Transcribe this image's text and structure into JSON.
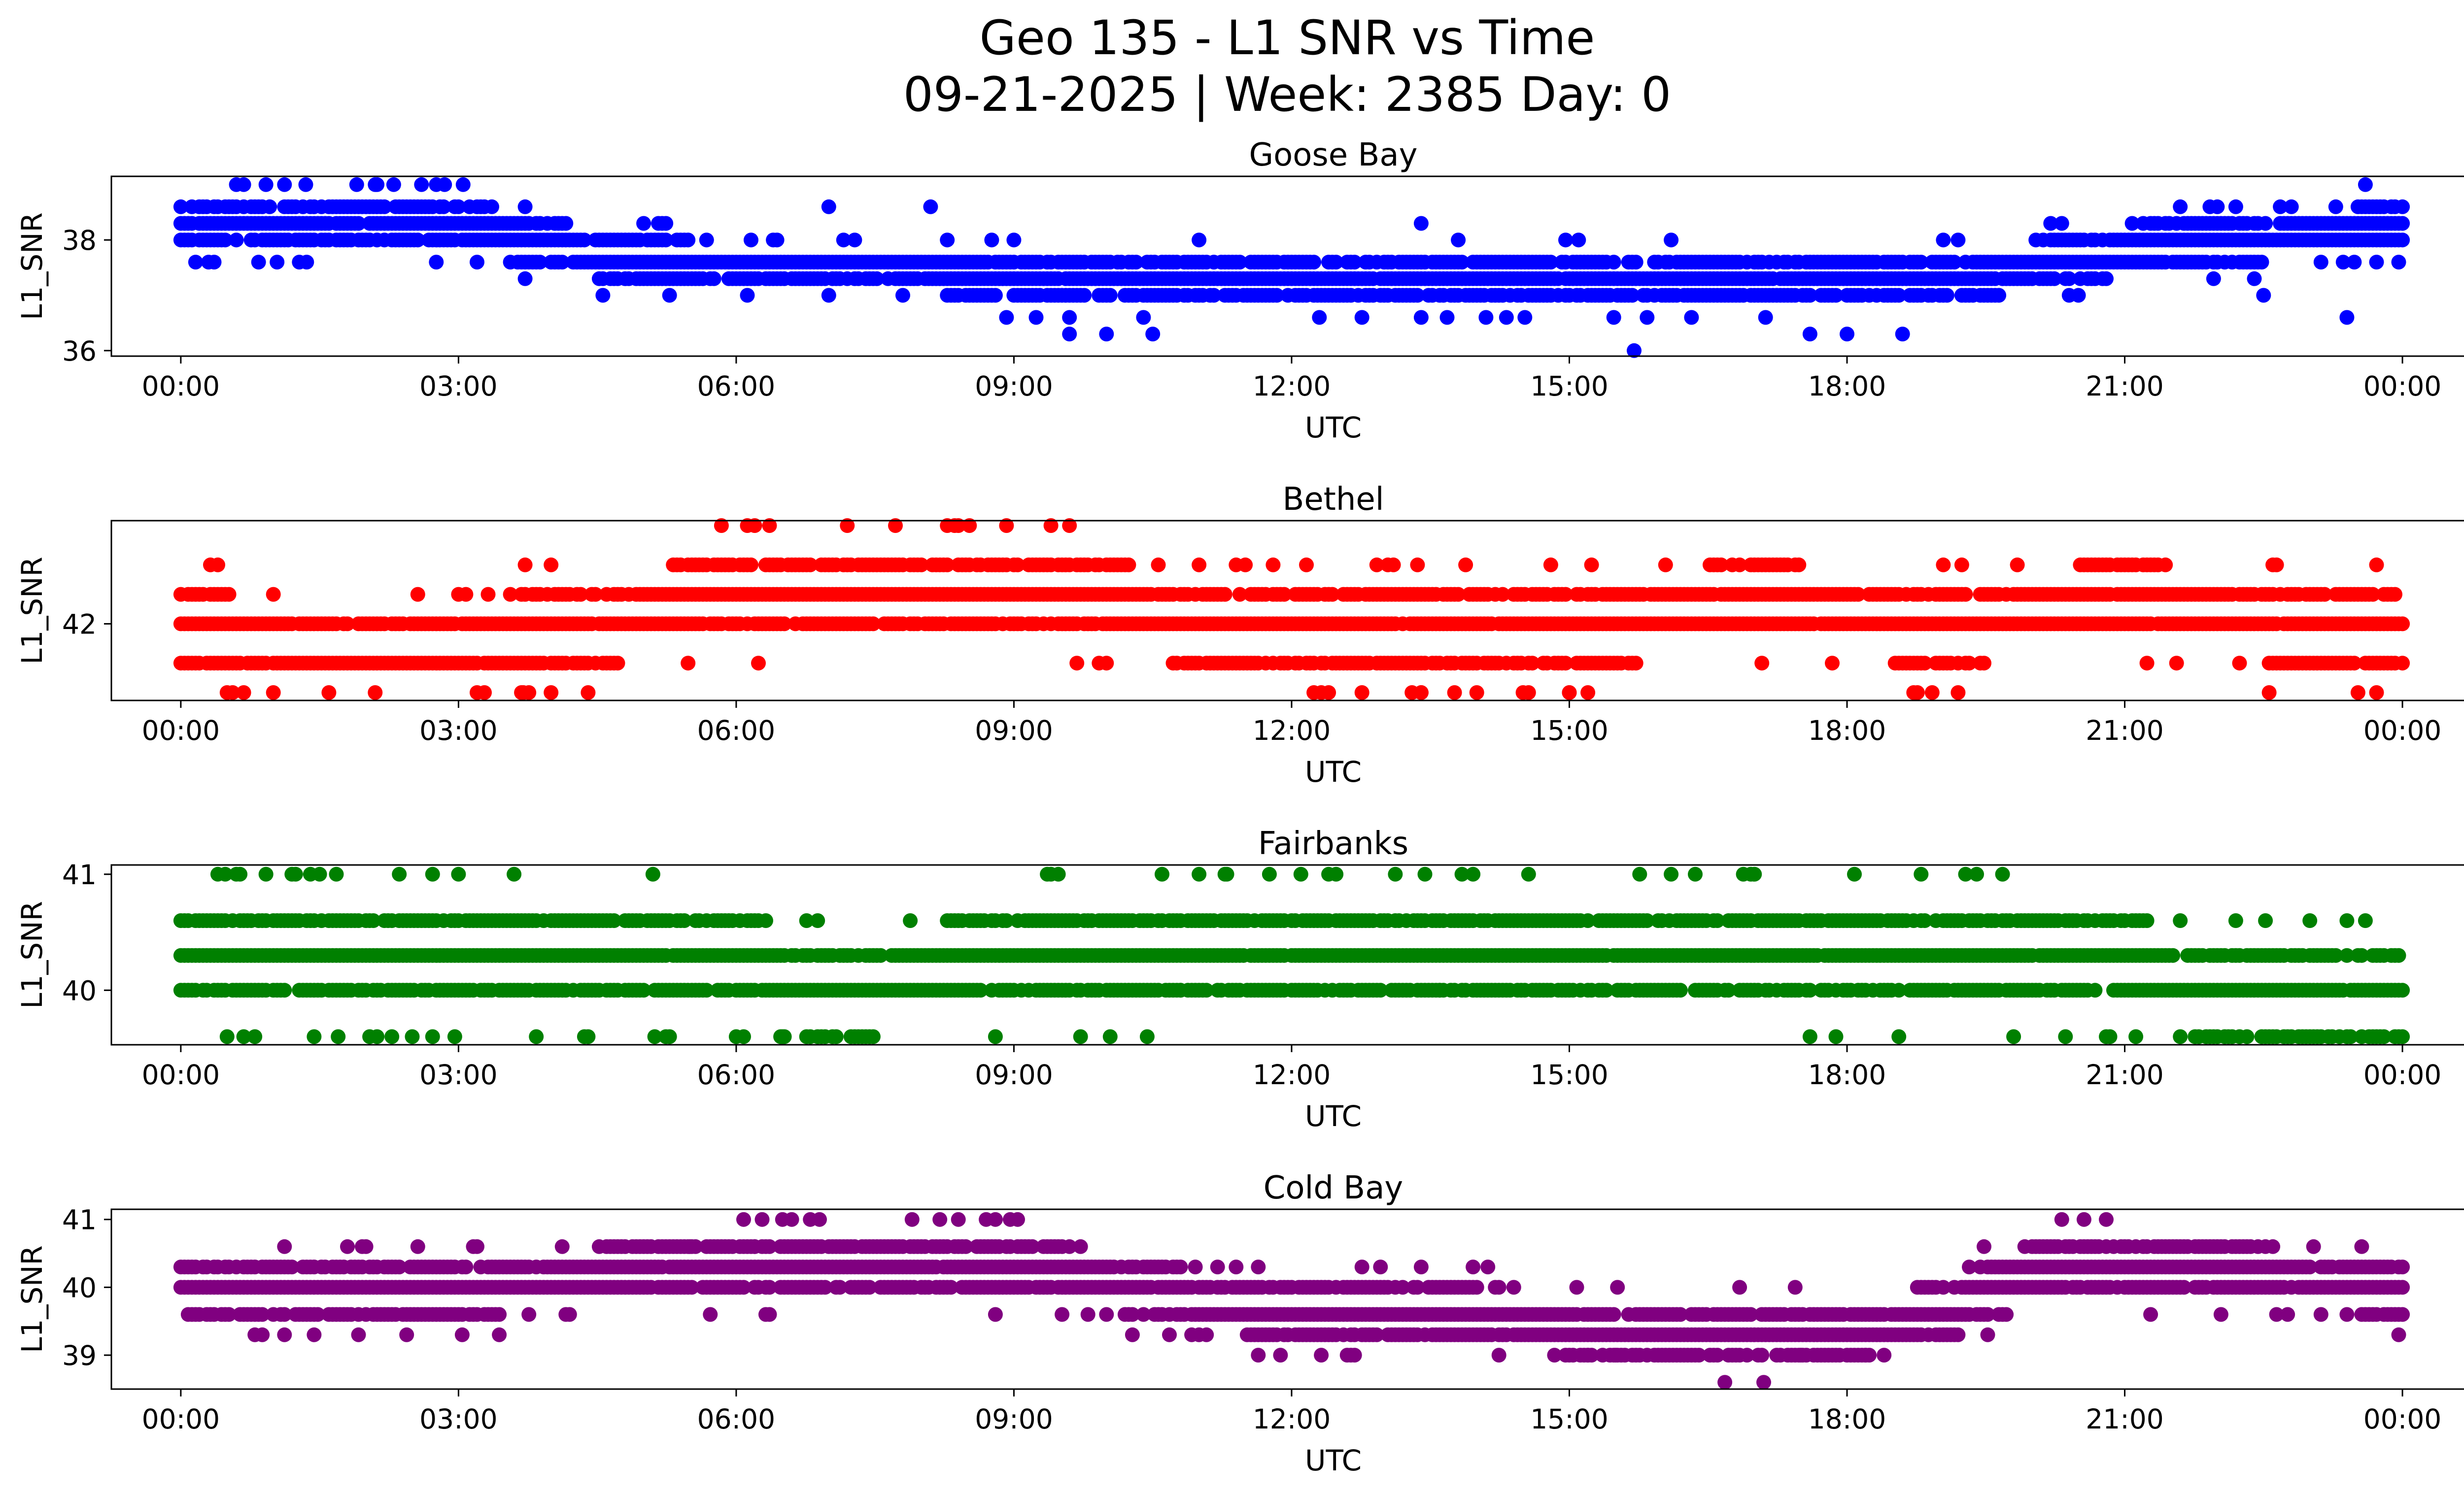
{
  "figure": {
    "title_line1": "Geo 135 - L1 SNR vs Time",
    "title_line2": "09-21-2025 | Week: 2385 Day: 0"
  },
  "chart_data": [
    {
      "type": "scatter",
      "title": "Goose Bay",
      "xlabel": "UTC",
      "ylabel": "L1_SNR",
      "color": "#0000ff",
      "xlim_hours": [
        -0.75,
        25.65
      ],
      "ylim": [
        35.9,
        39.15
      ],
      "x_ticks": [
        "00:00",
        "03:00",
        "06:00",
        "09:00",
        "12:00",
        "15:00",
        "18:00",
        "21:00",
        "00:00"
      ],
      "y_ticks": [
        36,
        38
      ],
      "levels": [
        36.0,
        36.3,
        36.6,
        37.0,
        37.3,
        37.6,
        38.0,
        38.3,
        38.6,
        39.0
      ],
      "hourly_level": [
        38.2,
        38.3,
        38.4,
        38.3,
        37.9,
        37.6,
        37.5,
        37.5,
        37.5,
        37.3,
        37.2,
        37.2,
        37.2,
        37.2,
        37.3,
        37.3,
        37.2,
        37.2,
        37.2,
        37.3,
        37.5,
        37.8,
        38.0,
        38.1,
        38.2
      ],
      "sparse_points": [
        [
          0.3,
          37.6
        ],
        [
          0.6,
          39.0
        ],
        [
          1.35,
          39.0
        ],
        [
          1.9,
          39.0
        ],
        [
          2.1,
          39.0
        ],
        [
          2.3,
          39.0
        ],
        [
          2.6,
          39.0
        ],
        [
          2.85,
          39.0
        ],
        [
          3.05,
          39.0
        ],
        [
          7.0,
          38.6
        ],
        [
          8.1,
          38.6
        ],
        [
          9.6,
          36.3
        ],
        [
          10.0,
          36.3
        ],
        [
          10.5,
          36.3
        ],
        [
          11.0,
          38.0
        ],
        [
          12.3,
          36.6
        ],
        [
          13.4,
          38.3
        ],
        [
          14.1,
          36.6
        ],
        [
          15.1,
          38.0
        ],
        [
          15.7,
          36.0
        ],
        [
          16.1,
          38.0
        ],
        [
          17.6,
          36.3
        ],
        [
          18.0,
          36.3
        ],
        [
          18.6,
          36.3
        ],
        [
          19.2,
          38.0
        ],
        [
          20.5,
          37.0
        ],
        [
          22.5,
          37.0
        ],
        [
          23.4,
          36.6
        ],
        [
          23.6,
          39.0
        ],
        [
          20.2,
          38.3
        ],
        [
          22.0,
          38.6
        ]
      ]
    },
    {
      "type": "scatter",
      "title": "Bethel",
      "xlabel": "UTC",
      "ylabel": "L1_SNR",
      "color": "#ff0000",
      "xlim_hours": [
        -0.75,
        25.65
      ],
      "ylim": [
        41.22,
        43.05
      ],
      "x_ticks": [
        "00:00",
        "03:00",
        "06:00",
        "09:00",
        "12:00",
        "15:00",
        "18:00",
        "21:00",
        "00:00"
      ],
      "y_ticks": [
        42
      ],
      "levels": [
        41.3,
        41.6,
        42.0,
        42.3,
        42.6,
        43.0
      ],
      "hourly_level": [
        41.9,
        41.8,
        41.8,
        41.8,
        41.9,
        42.1,
        42.3,
        42.4,
        42.4,
        42.4,
        42.2,
        42.0,
        42.0,
        42.0,
        41.9,
        41.9,
        42.1,
        42.2,
        42.1,
        42.0,
        42.1,
        42.2,
        42.1,
        42.0,
        42.0
      ],
      "sparse_points": [
        [
          7.2,
          43.0
        ],
        [
          9.4,
          43.0
        ],
        [
          9.6,
          43.0
        ],
        [
          13.3,
          41.3
        ],
        [
          13.4,
          41.3
        ],
        [
          14.0,
          41.3
        ],
        [
          14.5,
          41.3
        ],
        [
          15.0,
          41.3
        ],
        [
          0.5,
          41.3
        ],
        [
          1.0,
          41.3
        ],
        [
          1.6,
          41.3
        ],
        [
          2.1,
          41.3
        ],
        [
          3.2,
          41.3
        ],
        [
          3.7,
          41.3
        ],
        [
          4.0,
          41.3
        ],
        [
          13.1,
          42.6
        ],
        [
          11.5,
          42.6
        ],
        [
          22.6,
          42.6
        ]
      ]
    },
    {
      "type": "scatter",
      "title": "Fairbanks",
      "xlabel": "UTC",
      "ylabel": "L1_SNR",
      "color": "#008000",
      "xlim_hours": [
        -0.75,
        25.65
      ],
      "ylim": [
        39.53,
        41.08
      ],
      "x_ticks": [
        "00:00",
        "03:00",
        "06:00",
        "09:00",
        "12:00",
        "15:00",
        "18:00",
        "21:00",
        "00:00"
      ],
      "y_ticks": [
        40,
        41
      ],
      "levels": [
        39.6,
        40.0,
        40.3,
        40.6,
        41.0
      ],
      "hourly_level": [
        40.3,
        40.3,
        40.3,
        40.3,
        40.2,
        40.2,
        40.2,
        40.0,
        40.1,
        40.3,
        40.3,
        40.4,
        40.4,
        40.4,
        40.4,
        40.4,
        40.4,
        40.4,
        40.3,
        40.3,
        40.3,
        40.2,
        40.0,
        40.0,
        40.0
      ],
      "sparse_points": [
        [
          0.4,
          41.0
        ],
        [
          0.6,
          41.0
        ],
        [
          1.2,
          41.0
        ],
        [
          1.4,
          41.0
        ],
        [
          1.5,
          41.0
        ],
        [
          3.6,
          41.0
        ],
        [
          5.1,
          41.0
        ],
        [
          11.0,
          41.0
        ],
        [
          11.3,
          41.0
        ],
        [
          12.1,
          41.0
        ],
        [
          12.4,
          41.0
        ],
        [
          16.1,
          41.0
        ],
        [
          17.0,
          41.0
        ],
        [
          18.8,
          41.0
        ],
        [
          0.5,
          39.6
        ],
        [
          0.8,
          39.6
        ],
        [
          1.7,
          39.6
        ],
        [
          2.5,
          39.6
        ],
        [
          6.0,
          39.6
        ],
        [
          6.5,
          39.6
        ],
        [
          19.8,
          39.6
        ],
        [
          20.8,
          39.6
        ],
        [
          10.8,
          40.0
        ],
        [
          13.2,
          40.0
        ],
        [
          13.6,
          40.0
        ]
      ]
    },
    {
      "type": "scatter",
      "title": "Cold Bay",
      "xlabel": "UTC",
      "ylabel": "L1_SNR",
      "color": "#800080",
      "xlim_hours": [
        -0.75,
        25.65
      ],
      "ylim": [
        38.5,
        41.15
      ],
      "x_ticks": [
        "00:00",
        "03:00",
        "06:00",
        "09:00",
        "12:00",
        "15:00",
        "18:00",
        "21:00",
        "00:00"
      ],
      "y_ticks": [
        39,
        40,
        41
      ],
      "levels": [
        38.6,
        39.0,
        39.3,
        39.6,
        40.0,
        40.3,
        40.6,
        41.0
      ],
      "hourly_level": [
        40.0,
        40.0,
        40.0,
        40.0,
        40.1,
        40.2,
        40.3,
        40.4,
        40.4,
        40.3,
        40.1,
        39.8,
        39.7,
        39.7,
        39.6,
        39.4,
        39.3,
        39.3,
        39.4,
        39.6,
        40.2,
        40.4,
        40.2,
        40.1,
        40.0
      ],
      "sparse_points": [
        [
          6.5,
          41.0
        ],
        [
          6.8,
          41.0
        ],
        [
          6.9,
          41.0
        ],
        [
          7.9,
          41.0
        ],
        [
          8.2,
          41.0
        ],
        [
          8.4,
          41.0
        ],
        [
          8.7,
          41.0
        ],
        [
          20.8,
          41.0
        ],
        [
          17.1,
          38.6
        ],
        [
          12.6,
          39.0
        ],
        [
          15.2,
          39.0
        ],
        [
          15.5,
          39.0
        ],
        [
          17.5,
          39.0
        ],
        [
          18.2,
          39.0
        ],
        [
          3.2,
          40.6
        ],
        [
          5.5,
          40.6
        ],
        [
          6.2,
          40.6
        ],
        [
          9.8,
          39.6
        ]
      ]
    }
  ]
}
